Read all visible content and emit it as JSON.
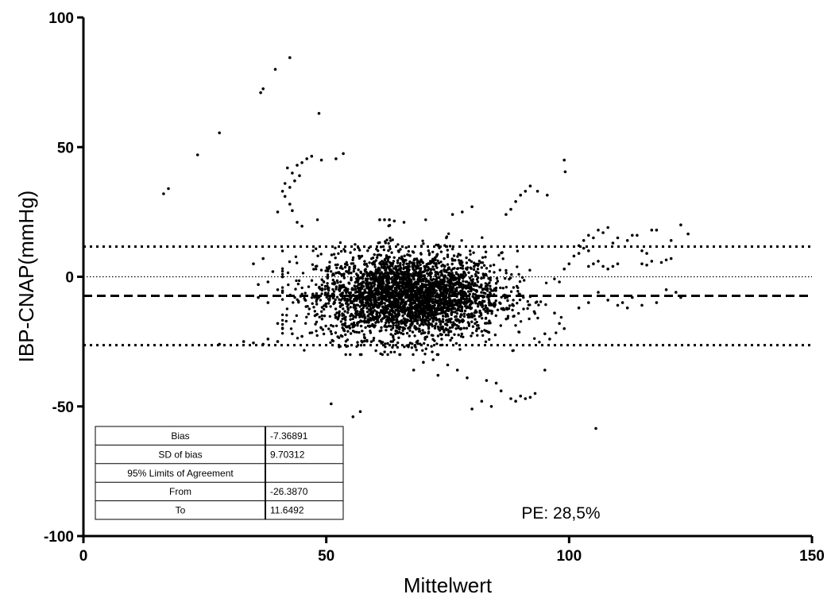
{
  "chart_data": {
    "type": "scatter",
    "title": "",
    "xlabel": "Mittelwert",
    "ylabel": "IBP-CNAP(mmHg)",
    "xlim": [
      0,
      150
    ],
    "ylim": [
      -100,
      100
    ],
    "x_ticks": [
      0,
      50,
      100,
      150
    ],
    "y_ticks": [
      -100,
      -50,
      0,
      50,
      100
    ],
    "x_tick_labels": [
      "0",
      "50",
      "100",
      "150"
    ],
    "y_tick_labels": [
      "-100",
      "-50",
      "0",
      "50",
      "100"
    ],
    "grid": false,
    "reference_lines": [
      {
        "name": "zero",
        "y": 0,
        "style": "fine-dotted"
      },
      {
        "name": "bias",
        "y": -7.36891,
        "style": "dashed"
      },
      {
        "name": "upper-loa",
        "y": 11.6492,
        "style": "dotted"
      },
      {
        "name": "lower-loa",
        "y": -26.387,
        "style": "dotted"
      }
    ],
    "stats_table": [
      [
        "Bias",
        "-7.36891"
      ],
      [
        "SD of bias",
        "9.70312"
      ],
      [
        "95% Limits of Agreement",
        ""
      ],
      [
        "From",
        "-26.3870"
      ],
      [
        "To",
        "11.6492"
      ]
    ],
    "annotation": "PE: 28,5%",
    "cluster_region": {
      "x_range": [
        40,
        100
      ],
      "y_mean": -7.4,
      "y_sd": 9.7
    },
    "outlier_points": [
      [
        16.5,
        32
      ],
      [
        17.5,
        34
      ],
      [
        23.5,
        47
      ],
      [
        28,
        55.5
      ],
      [
        36.5,
        71
      ],
      [
        37,
        72.5
      ],
      [
        39.5,
        80
      ],
      [
        42.5,
        84.5
      ],
      [
        48.5,
        63
      ],
      [
        49,
        45
      ],
      [
        52,
        45.5
      ],
      [
        53.5,
        47.5
      ],
      [
        42,
        42
      ],
      [
        43,
        40
      ],
      [
        44,
        43
      ],
      [
        45,
        44
      ],
      [
        46,
        45.5
      ],
      [
        47,
        46.5
      ],
      [
        41,
        33
      ],
      [
        41.5,
        31
      ],
      [
        42.5,
        28
      ],
      [
        43,
        25.5
      ],
      [
        40,
        25
      ],
      [
        44,
        21
      ],
      [
        45,
        19.5
      ],
      [
        42.5,
        34.5
      ],
      [
        43.5,
        37
      ],
      [
        44.5,
        39
      ],
      [
        41.5,
        36
      ],
      [
        87,
        24
      ],
      [
        88,
        26
      ],
      [
        89,
        29
      ],
      [
        90,
        31.5
      ],
      [
        91,
        33
      ],
      [
        92,
        35
      ],
      [
        93.5,
        33
      ],
      [
        95.5,
        31.5
      ],
      [
        99,
        45
      ],
      [
        99.2,
        40.5
      ],
      [
        76,
        24
      ],
      [
        80,
        27
      ],
      [
        78,
        25
      ],
      [
        66,
        21
      ],
      [
        61,
        22
      ],
      [
        62,
        22
      ],
      [
        63,
        22
      ],
      [
        64,
        21.5
      ],
      [
        102,
        12
      ],
      [
        103,
        14
      ],
      [
        104,
        16
      ],
      [
        105,
        15
      ],
      [
        106,
        18
      ],
      [
        107,
        17
      ],
      [
        108,
        19
      ],
      [
        109,
        13
      ],
      [
        110,
        15
      ],
      [
        112,
        14
      ],
      [
        113,
        16
      ],
      [
        114,
        16
      ],
      [
        117,
        18
      ],
      [
        118,
        18
      ],
      [
        121,
        14
      ],
      [
        123,
        20
      ],
      [
        124.5,
        16.5
      ],
      [
        115,
        10
      ],
      [
        116,
        9
      ],
      [
        104,
        4
      ],
      [
        105,
        5
      ],
      [
        106,
        6
      ],
      [
        107,
        4
      ],
      [
        108,
        3
      ],
      [
        109,
        4
      ],
      [
        110,
        5
      ],
      [
        115,
        5
      ],
      [
        116,
        4.5
      ],
      [
        117,
        6
      ],
      [
        119,
        5.5
      ],
      [
        120,
        6.5
      ],
      [
        121,
        7
      ],
      [
        106,
        -6
      ],
      [
        108,
        -9
      ],
      [
        110,
        -11
      ],
      [
        111,
        -10
      ],
      [
        112,
        -12
      ],
      [
        113,
        -8
      ],
      [
        115,
        -11
      ],
      [
        118,
        -10
      ],
      [
        120,
        -5
      ],
      [
        122,
        -6
      ],
      [
        123,
        -8
      ],
      [
        102,
        -12
      ],
      [
        104,
        -10
      ],
      [
        33,
        -25
      ],
      [
        35,
        -25.5
      ],
      [
        37,
        -26
      ],
      [
        28,
        -26
      ],
      [
        38,
        -24
      ],
      [
        40,
        -25
      ],
      [
        88,
        -47
      ],
      [
        89,
        -48
      ],
      [
        90,
        -46
      ],
      [
        91,
        -47
      ],
      [
        92,
        -46.5
      ],
      [
        93,
        -45
      ],
      [
        95,
        -36
      ],
      [
        80,
        -51
      ],
      [
        82,
        -48
      ],
      [
        84,
        -50
      ],
      [
        86,
        -44
      ],
      [
        83,
        -40
      ],
      [
        79,
        -39
      ],
      [
        57,
        -52
      ],
      [
        55.5,
        -54
      ],
      [
        51,
        -49
      ],
      [
        105.5,
        -58.5
      ],
      [
        70,
        -33
      ],
      [
        72,
        -32
      ],
      [
        68,
        -36
      ],
      [
        75,
        -34
      ],
      [
        77,
        -36
      ],
      [
        73,
        -38
      ],
      [
        85,
        -41
      ],
      [
        36,
        -3
      ],
      [
        38,
        -2
      ],
      [
        39,
        2
      ],
      [
        40,
        -5
      ],
      [
        36,
        -8
      ],
      [
        38,
        -10
      ],
      [
        40,
        -18
      ],
      [
        41,
        -20
      ],
      [
        43,
        -22
      ],
      [
        45,
        -23
      ],
      [
        35,
        5
      ],
      [
        37,
        7
      ],
      [
        101,
        8
      ],
      [
        102,
        9
      ],
      [
        103,
        11
      ],
      [
        104,
        10
      ],
      [
        100,
        5
      ],
      [
        99,
        3
      ],
      [
        98,
        -2
      ],
      [
        97,
        -14
      ],
      [
        98,
        -18
      ],
      [
        99,
        -20
      ],
      [
        96,
        -24
      ],
      [
        95,
        -22
      ]
    ]
  }
}
